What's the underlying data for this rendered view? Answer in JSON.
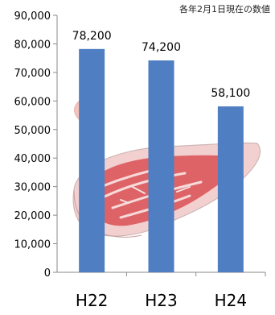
{
  "note": "各年2月1日現在の数値",
  "chart_data": {
    "type": "bar",
    "categories": [
      "H22",
      "H23",
      "H24"
    ],
    "values": [
      78200,
      74200,
      58100
    ],
    "value_labels": [
      "78,200",
      "74,200",
      "58,100"
    ],
    "ylim": [
      0,
      90000
    ],
    "yticks": [
      0,
      10000,
      20000,
      30000,
      40000,
      50000,
      60000,
      70000,
      80000,
      90000
    ],
    "ytick_labels": [
      "0",
      "10,000",
      "20,000",
      "30,000",
      "40,000",
      "50,000",
      "60,000",
      "70,000",
      "80,000",
      "90,000"
    ],
    "bar_color": "#4f7ec2",
    "grid": false,
    "legend": "none"
  }
}
